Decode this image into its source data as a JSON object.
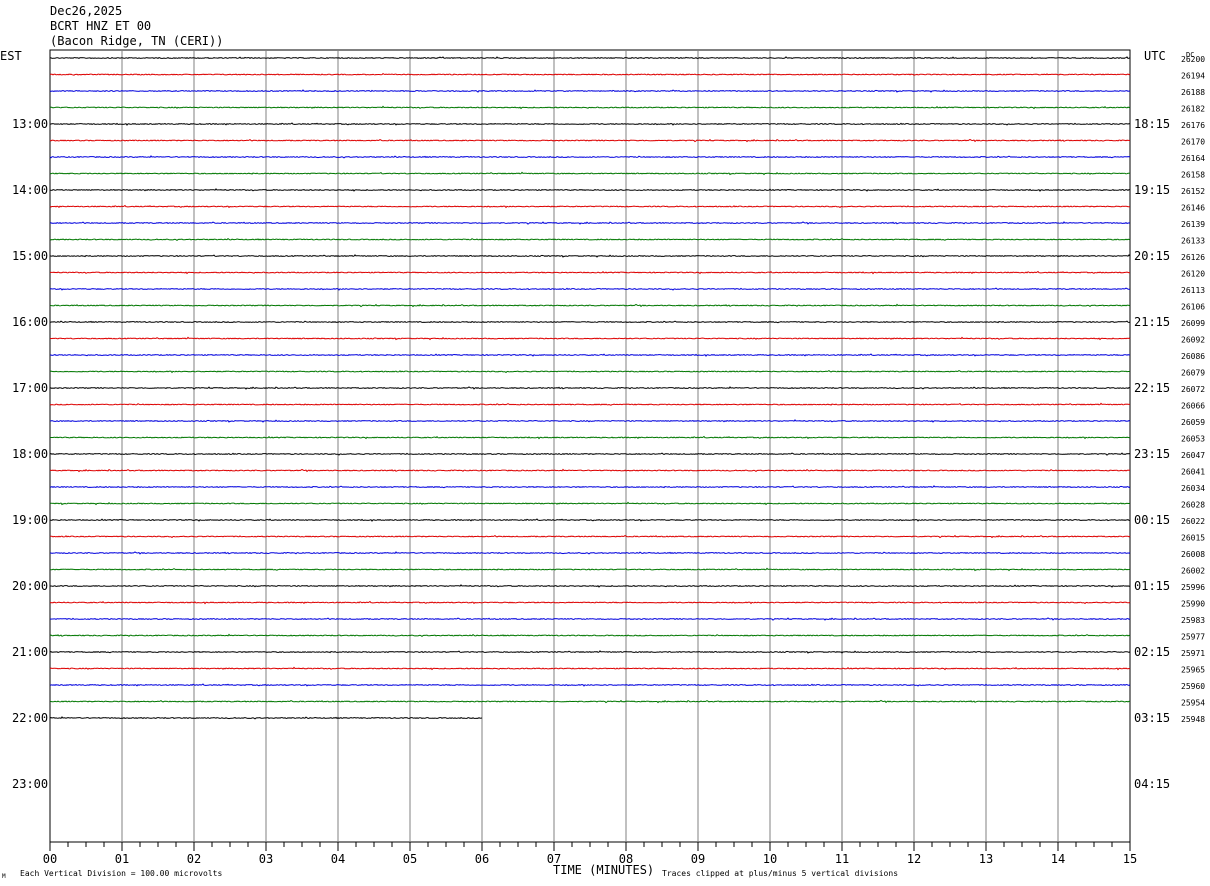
{
  "header": {
    "date": "Dec26,2025",
    "station": "BCRT HNZ ET 00",
    "location": "(Bacon Ridge, TN (CERI))"
  },
  "left_timezone": "EST",
  "right_timezone": "UTC",
  "dc_label": "DC",
  "footer": {
    "scale_note": "Each Vertical Division =  100.00 microvolts",
    "clip_note": "Traces clipped at plus/minus 5 vertical divisions",
    "logo_glyph": "M"
  },
  "colors": {
    "trace_cycle": [
      "#000000",
      "#dd0000",
      "#0000dd",
      "#007700"
    ],
    "grid": "#808080",
    "border": "#000000"
  },
  "chart_data": {
    "type": "line",
    "title": "",
    "xlabel": "TIME (MINUTES)",
    "ylabel": "",
    "xlim": [
      0,
      15
    ],
    "x_ticks": [
      "00",
      "01",
      "02",
      "03",
      "04",
      "05",
      "06",
      "07",
      "08",
      "09",
      "10",
      "11",
      "12",
      "13",
      "14",
      "15"
    ],
    "minor_ticks_per_minute": 4,
    "rows_per_hour": 4,
    "left_hour_labels": [
      "13:00",
      "14:00",
      "15:00",
      "16:00",
      "17:00",
      "18:00",
      "19:00",
      "20:00",
      "21:00",
      "22:00",
      "23:00"
    ],
    "right_hour_labels": [
      "18:15",
      "19:15",
      "20:15",
      "21:15",
      "22:15",
      "23:15",
      "00:15",
      "01:15",
      "02:15",
      "03:15",
      "04:15"
    ],
    "total_rows": 48,
    "last_trace_end_minute": 6,
    "dc_values": [
      "26200",
      "26194",
      "26188",
      "26182",
      "26176",
      "26170",
      "26164",
      "26158",
      "26152",
      "26146",
      "26139",
      "26133",
      "26126",
      "26120",
      "26113",
      "26106",
      "26099",
      "26092",
      "26086",
      "26079",
      "26072",
      "26066",
      "26059",
      "26053",
      "26047",
      "26041",
      "26034",
      "26028",
      "26022",
      "26015",
      "26008",
      "26002",
      "25996",
      "25990",
      "25983",
      "25977",
      "25971",
      "25965",
      "25960",
      "25954",
      "25948"
    ]
  }
}
